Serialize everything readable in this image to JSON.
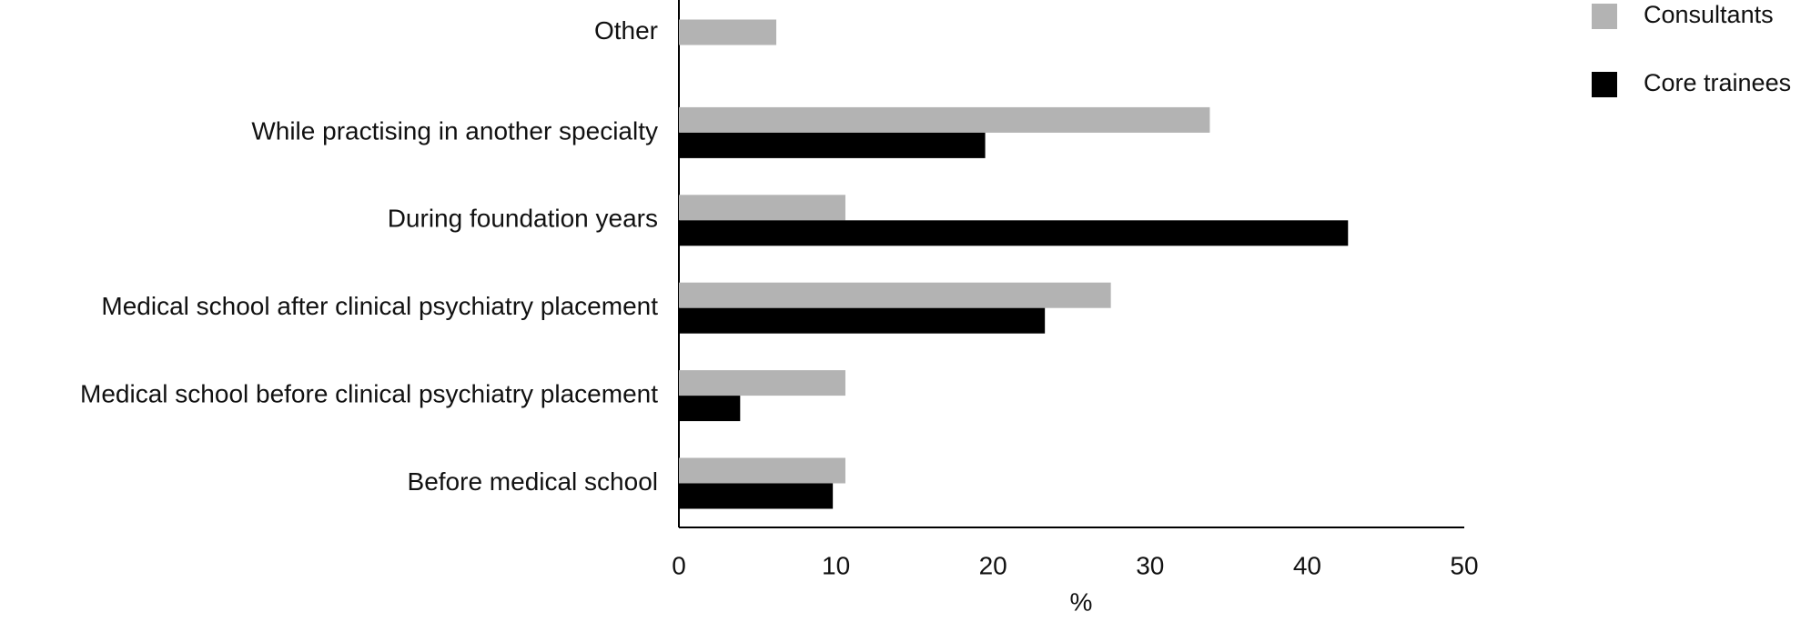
{
  "chart_data": {
    "type": "bar",
    "orientation": "horizontal",
    "categories": [
      "Other",
      "While practising in another specialty",
      "During foundation years",
      "Medical school after clinical psychiatry placement",
      "Medical school before clinical psychiatry placement",
      "Before medical school"
    ],
    "series": [
      {
        "name": "Consultants",
        "color": "#b3b3b3",
        "values": [
          6.2,
          33.8,
          10.6,
          27.5,
          10.6,
          10.6
        ]
      },
      {
        "name": "Core trainees",
        "color": "#000000",
        "values": [
          null,
          19.5,
          42.6,
          23.3,
          3.9,
          9.8
        ]
      }
    ],
    "xlabel": "%",
    "xlim": [
      0,
      50
    ],
    "xticks": [
      0,
      10,
      20,
      30,
      40,
      50
    ],
    "legend": "top-right",
    "grid": false
  }
}
